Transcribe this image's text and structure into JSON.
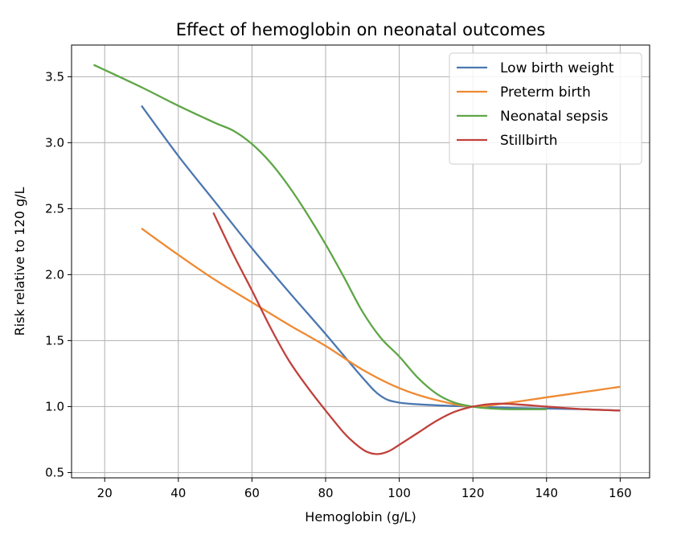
{
  "chart_data": {
    "type": "line",
    "title": "Effect of hemoglobin on neonatal outcomes",
    "xlabel": "Hemoglobin (g/L)",
    "ylabel": "Risk relative to 120 g/L",
    "xlim": [
      11,
      168
    ],
    "ylim": [
      0.46,
      3.74
    ],
    "xticks": [
      20,
      40,
      60,
      80,
      100,
      120,
      140,
      160
    ],
    "yticks": [
      0.5,
      1.0,
      1.5,
      2.0,
      2.5,
      3.0,
      3.5
    ],
    "xtick_labels": [
      "20",
      "40",
      "60",
      "80",
      "100",
      "120",
      "140",
      "160"
    ],
    "ytick_labels": [
      "0.5",
      "1.0",
      "1.5",
      "2.0",
      "2.5",
      "3.0",
      "3.5"
    ],
    "grid": true,
    "legend_position": "top-right",
    "series": [
      {
        "name": "Low birth weight",
        "color": "#4c78b0",
        "points": [
          [
            30,
            3.28
          ],
          [
            40,
            2.9
          ],
          [
            50,
            2.55
          ],
          [
            60,
            2.2
          ],
          [
            70,
            1.87
          ],
          [
            80,
            1.55
          ],
          [
            90,
            1.22
          ],
          [
            95,
            1.08
          ],
          [
            100,
            1.03
          ],
          [
            110,
            1.01
          ],
          [
            120,
            1.0
          ],
          [
            130,
            0.99
          ],
          [
            140,
            0.985
          ],
          [
            150,
            0.98
          ],
          [
            160,
            0.97
          ]
        ]
      },
      {
        "name": "Preterm birth",
        "color": "#ef8a33",
        "points": [
          [
            30,
            2.35
          ],
          [
            40,
            2.15
          ],
          [
            50,
            1.96
          ],
          [
            60,
            1.79
          ],
          [
            70,
            1.62
          ],
          [
            80,
            1.46
          ],
          [
            90,
            1.28
          ],
          [
            100,
            1.14
          ],
          [
            110,
            1.05
          ],
          [
            120,
            1.0
          ],
          [
            130,
            1.03
          ],
          [
            140,
            1.07
          ],
          [
            150,
            1.11
          ],
          [
            160,
            1.15
          ]
        ]
      },
      {
        "name": "Neonatal sepsis",
        "color": "#5ea646",
        "points": [
          [
            17,
            3.59
          ],
          [
            30,
            3.42
          ],
          [
            40,
            3.28
          ],
          [
            50,
            3.15
          ],
          [
            55,
            3.09
          ],
          [
            60,
            2.99
          ],
          [
            65,
            2.85
          ],
          [
            70,
            2.67
          ],
          [
            75,
            2.46
          ],
          [
            80,
            2.23
          ],
          [
            85,
            1.98
          ],
          [
            90,
            1.72
          ],
          [
            95,
            1.52
          ],
          [
            100,
            1.38
          ],
          [
            105,
            1.22
          ],
          [
            110,
            1.1
          ],
          [
            115,
            1.03
          ],
          [
            120,
            1.0
          ],
          [
            125,
            0.985
          ],
          [
            130,
            0.98
          ],
          [
            140,
            0.98
          ]
        ]
      },
      {
        "name": "Stillbirth",
        "color": "#c0413c",
        "points": [
          [
            49.5,
            2.47
          ],
          [
            55,
            2.15
          ],
          [
            60,
            1.88
          ],
          [
            65,
            1.6
          ],
          [
            70,
            1.35
          ],
          [
            75,
            1.15
          ],
          [
            80,
            0.97
          ],
          [
            85,
            0.8
          ],
          [
            88,
            0.72
          ],
          [
            91,
            0.66
          ],
          [
            94,
            0.64
          ],
          [
            97,
            0.66
          ],
          [
            100,
            0.71
          ],
          [
            105,
            0.8
          ],
          [
            110,
            0.89
          ],
          [
            115,
            0.96
          ],
          [
            120,
            1.0
          ],
          [
            125,
            1.02
          ],
          [
            130,
            1.02
          ],
          [
            140,
            1.0
          ],
          [
            150,
            0.98
          ],
          [
            160,
            0.97
          ]
        ]
      }
    ]
  }
}
